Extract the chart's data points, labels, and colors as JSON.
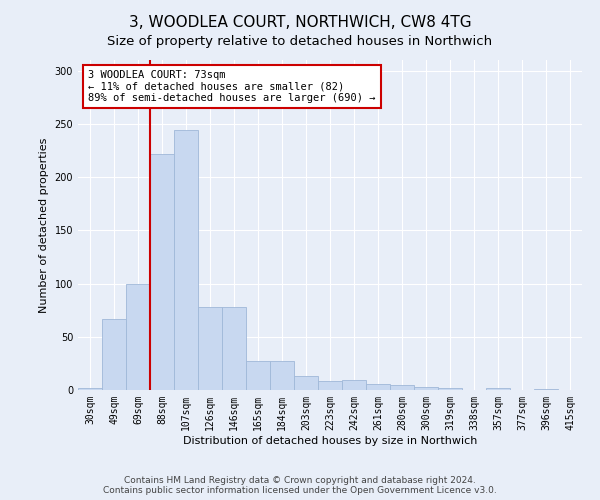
{
  "title": "3, WOODLEA COURT, NORTHWICH, CW8 4TG",
  "subtitle": "Size of property relative to detached houses in Northwich",
  "xlabel": "Distribution of detached houses by size in Northwich",
  "ylabel": "Number of detached properties",
  "bar_labels": [
    "30sqm",
    "49sqm",
    "69sqm",
    "88sqm",
    "107sqm",
    "126sqm",
    "146sqm",
    "165sqm",
    "184sqm",
    "203sqm",
    "223sqm",
    "242sqm",
    "261sqm",
    "280sqm",
    "300sqm",
    "319sqm",
    "338sqm",
    "357sqm",
    "377sqm",
    "396sqm",
    "415sqm"
  ],
  "bar_values": [
    2,
    67,
    100,
    222,
    244,
    78,
    78,
    27,
    27,
    13,
    8,
    9,
    6,
    5,
    3,
    2,
    0,
    2,
    0,
    1,
    0
  ],
  "bar_color": "#c8d8f0",
  "bar_edgecolor": "#a0b8d8",
  "vline_color": "#cc0000",
  "annotation_text": "3 WOODLEA COURT: 73sqm\n← 11% of detached houses are smaller (82)\n89% of semi-detached houses are larger (690) →",
  "annotation_box_color": "white",
  "annotation_box_edgecolor": "#cc0000",
  "ylim": [
    0,
    310
  ],
  "yticks": [
    0,
    50,
    100,
    150,
    200,
    250,
    300
  ],
  "footer_line1": "Contains HM Land Registry data © Crown copyright and database right 2024.",
  "footer_line2": "Contains public sector information licensed under the Open Government Licence v3.0.",
  "background_color": "#e8eef8",
  "plot_background_color": "#e8eef8",
  "title_fontsize": 11,
  "subtitle_fontsize": 9.5,
  "axis_label_fontsize": 8,
  "tick_fontsize": 7,
  "annotation_fontsize": 7.5,
  "footer_fontsize": 6.5
}
